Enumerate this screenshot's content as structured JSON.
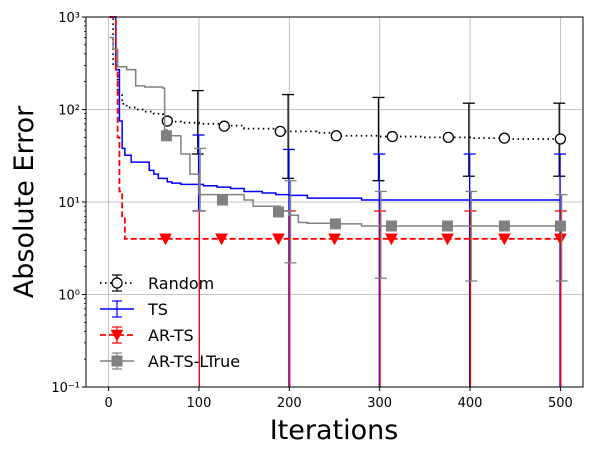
{
  "chart_data": {
    "type": "line",
    "xlabel": "Iterations",
    "ylabel": "Absolute Error",
    "xlim": [
      -25,
      525
    ],
    "ylim": [
      0.1,
      1000
    ],
    "yscale": "log",
    "grid": true,
    "legend_position": "lower-left",
    "x_ticks": [
      0,
      100,
      200,
      300,
      400,
      500
    ],
    "x_tick_labels": [
      "0",
      "100",
      "200",
      "300",
      "400",
      "500"
    ],
    "y_ticks": [
      0.1,
      1,
      10,
      100,
      1000
    ],
    "y_tick_labels": [
      "10⁻¹",
      "10⁰",
      "10¹",
      "10²",
      "10³"
    ],
    "series": [
      {
        "name": "Random",
        "color": "#000000",
        "style": "dotted",
        "marker": "open-circle",
        "x": [
          1,
          5,
          10,
          15,
          20,
          30,
          40,
          50,
          60,
          70,
          80,
          100,
          125,
          150,
          188,
          200,
          230,
          250,
          300,
          313,
          350,
          375,
          400,
          438,
          460,
          500
        ],
        "y": [
          1000,
          300,
          150,
          115,
          105,
          100,
          95,
          90,
          78,
          74,
          72,
          70,
          67,
          62,
          58,
          58,
          56,
          52,
          51,
          51,
          50,
          50,
          49,
          48,
          48,
          48
        ],
        "markers": [
          {
            "x": 65,
            "y": 75
          },
          {
            "x": 128,
            "y": 66
          },
          {
            "x": 190,
            "y": 58
          },
          {
            "x": 252,
            "y": 52
          },
          {
            "x": 314,
            "y": 51
          },
          {
            "x": 376,
            "y": 50
          },
          {
            "x": 438,
            "y": 49
          },
          {
            "x": 500,
            "y": 48
          }
        ],
        "errorbars": [
          {
            "x": 100,
            "y": 70,
            "low": 33,
            "high": 160
          },
          {
            "x": 200,
            "y": 58,
            "low": 18,
            "high": 145
          },
          {
            "x": 300,
            "y": 51,
            "low": 17,
            "high": 135
          },
          {
            "x": 400,
            "y": 49,
            "low": 19,
            "high": 117
          },
          {
            "x": 500,
            "y": 48,
            "low": 19,
            "high": 117
          }
        ]
      },
      {
        "name": "TS",
        "color": "#0000ff",
        "style": "solid",
        "marker": "none",
        "x": [
          1,
          8,
          12,
          15,
          18,
          25,
          45,
          50,
          55,
          65,
          70,
          80,
          105,
          120,
          135,
          150,
          170,
          185,
          200,
          220,
          250,
          280,
          300,
          500
        ],
        "y": [
          1000,
          270,
          75,
          38,
          32,
          27,
          22,
          20,
          18,
          16.5,
          16,
          15.5,
          15,
          14.5,
          14,
          13,
          12.5,
          12,
          11.8,
          11,
          11,
          10.5,
          10.5,
          10.5
        ],
        "errorbars": [
          {
            "x": 100,
            "y": 15,
            "low": 8,
            "high": 53
          },
          {
            "x": 200,
            "y": 11.8,
            "low": 0.1,
            "high": 37
          },
          {
            "x": 300,
            "y": 10.5,
            "low": 0.1,
            "high": 33
          },
          {
            "x": 400,
            "y": 10.5,
            "low": 0.1,
            "high": 33
          },
          {
            "x": 500,
            "y": 10.5,
            "low": 0.1,
            "high": 33
          }
        ]
      },
      {
        "name": "AR-TS",
        "color": "#ff0000",
        "style": "dashed",
        "marker": "down-triangle",
        "x": [
          1,
          8,
          10,
          12,
          15,
          18,
          500
        ],
        "y": [
          1000,
          250,
          50,
          13,
          7,
          4,
          4
        ],
        "markers": [
          {
            "x": 63,
            "y": 4
          },
          {
            "x": 125,
            "y": 4
          },
          {
            "x": 188,
            "y": 4
          },
          {
            "x": 250,
            "y": 4
          },
          {
            "x": 313,
            "y": 4
          },
          {
            "x": 375,
            "y": 4
          },
          {
            "x": 438,
            "y": 4
          },
          {
            "x": 500,
            "y": 4
          }
        ],
        "errorbars": [
          {
            "x": 100,
            "y": 4,
            "low": 0.1,
            "high": 8
          },
          {
            "x": 200,
            "y": 4,
            "low": 0.1,
            "high": 8
          },
          {
            "x": 300,
            "y": 4,
            "low": 0.1,
            "high": 8
          },
          {
            "x": 400,
            "y": 4,
            "low": 0.1,
            "high": 8
          },
          {
            "x": 500,
            "y": 4,
            "low": 0.1,
            "high": 8
          }
        ]
      },
      {
        "name": "AR-TS-LTrue",
        "color": "#808080",
        "style": "solid",
        "marker": "square",
        "x": [
          1,
          5,
          10,
          20,
          30,
          40,
          60,
          62,
          65,
          80,
          90,
          100,
          150,
          160,
          190,
          200,
          210,
          220,
          250,
          280,
          300,
          500
        ],
        "y": [
          600,
          450,
          290,
          270,
          180,
          175,
          170,
          60,
          52,
          33,
          20,
          12,
          10.5,
          9,
          8,
          7.2,
          6,
          5.9,
          5.8,
          5.5,
          5.5,
          5.5
        ],
        "markers": [
          {
            "x": 64,
            "y": 52
          },
          {
            "x": 126,
            "y": 10.5
          },
          {
            "x": 188,
            "y": 7.8
          },
          {
            "x": 251,
            "y": 5.8
          },
          {
            "x": 313,
            "y": 5.5
          },
          {
            "x": 375,
            "y": 5.5
          },
          {
            "x": 438,
            "y": 5.5
          },
          {
            "x": 500,
            "y": 5.5
          }
        ],
        "errorbars": [
          {
            "x": 100,
            "y": 12,
            "low": 8,
            "high": 38
          },
          {
            "x": 200,
            "y": 7.2,
            "low": 2.2,
            "high": 17
          },
          {
            "x": 300,
            "y": 5.5,
            "low": 1.5,
            "high": 13
          },
          {
            "x": 400,
            "y": 5.5,
            "low": 1.4,
            "high": 13
          },
          {
            "x": 500,
            "y": 5.5,
            "low": 1.4,
            "high": 12
          }
        ]
      }
    ]
  }
}
